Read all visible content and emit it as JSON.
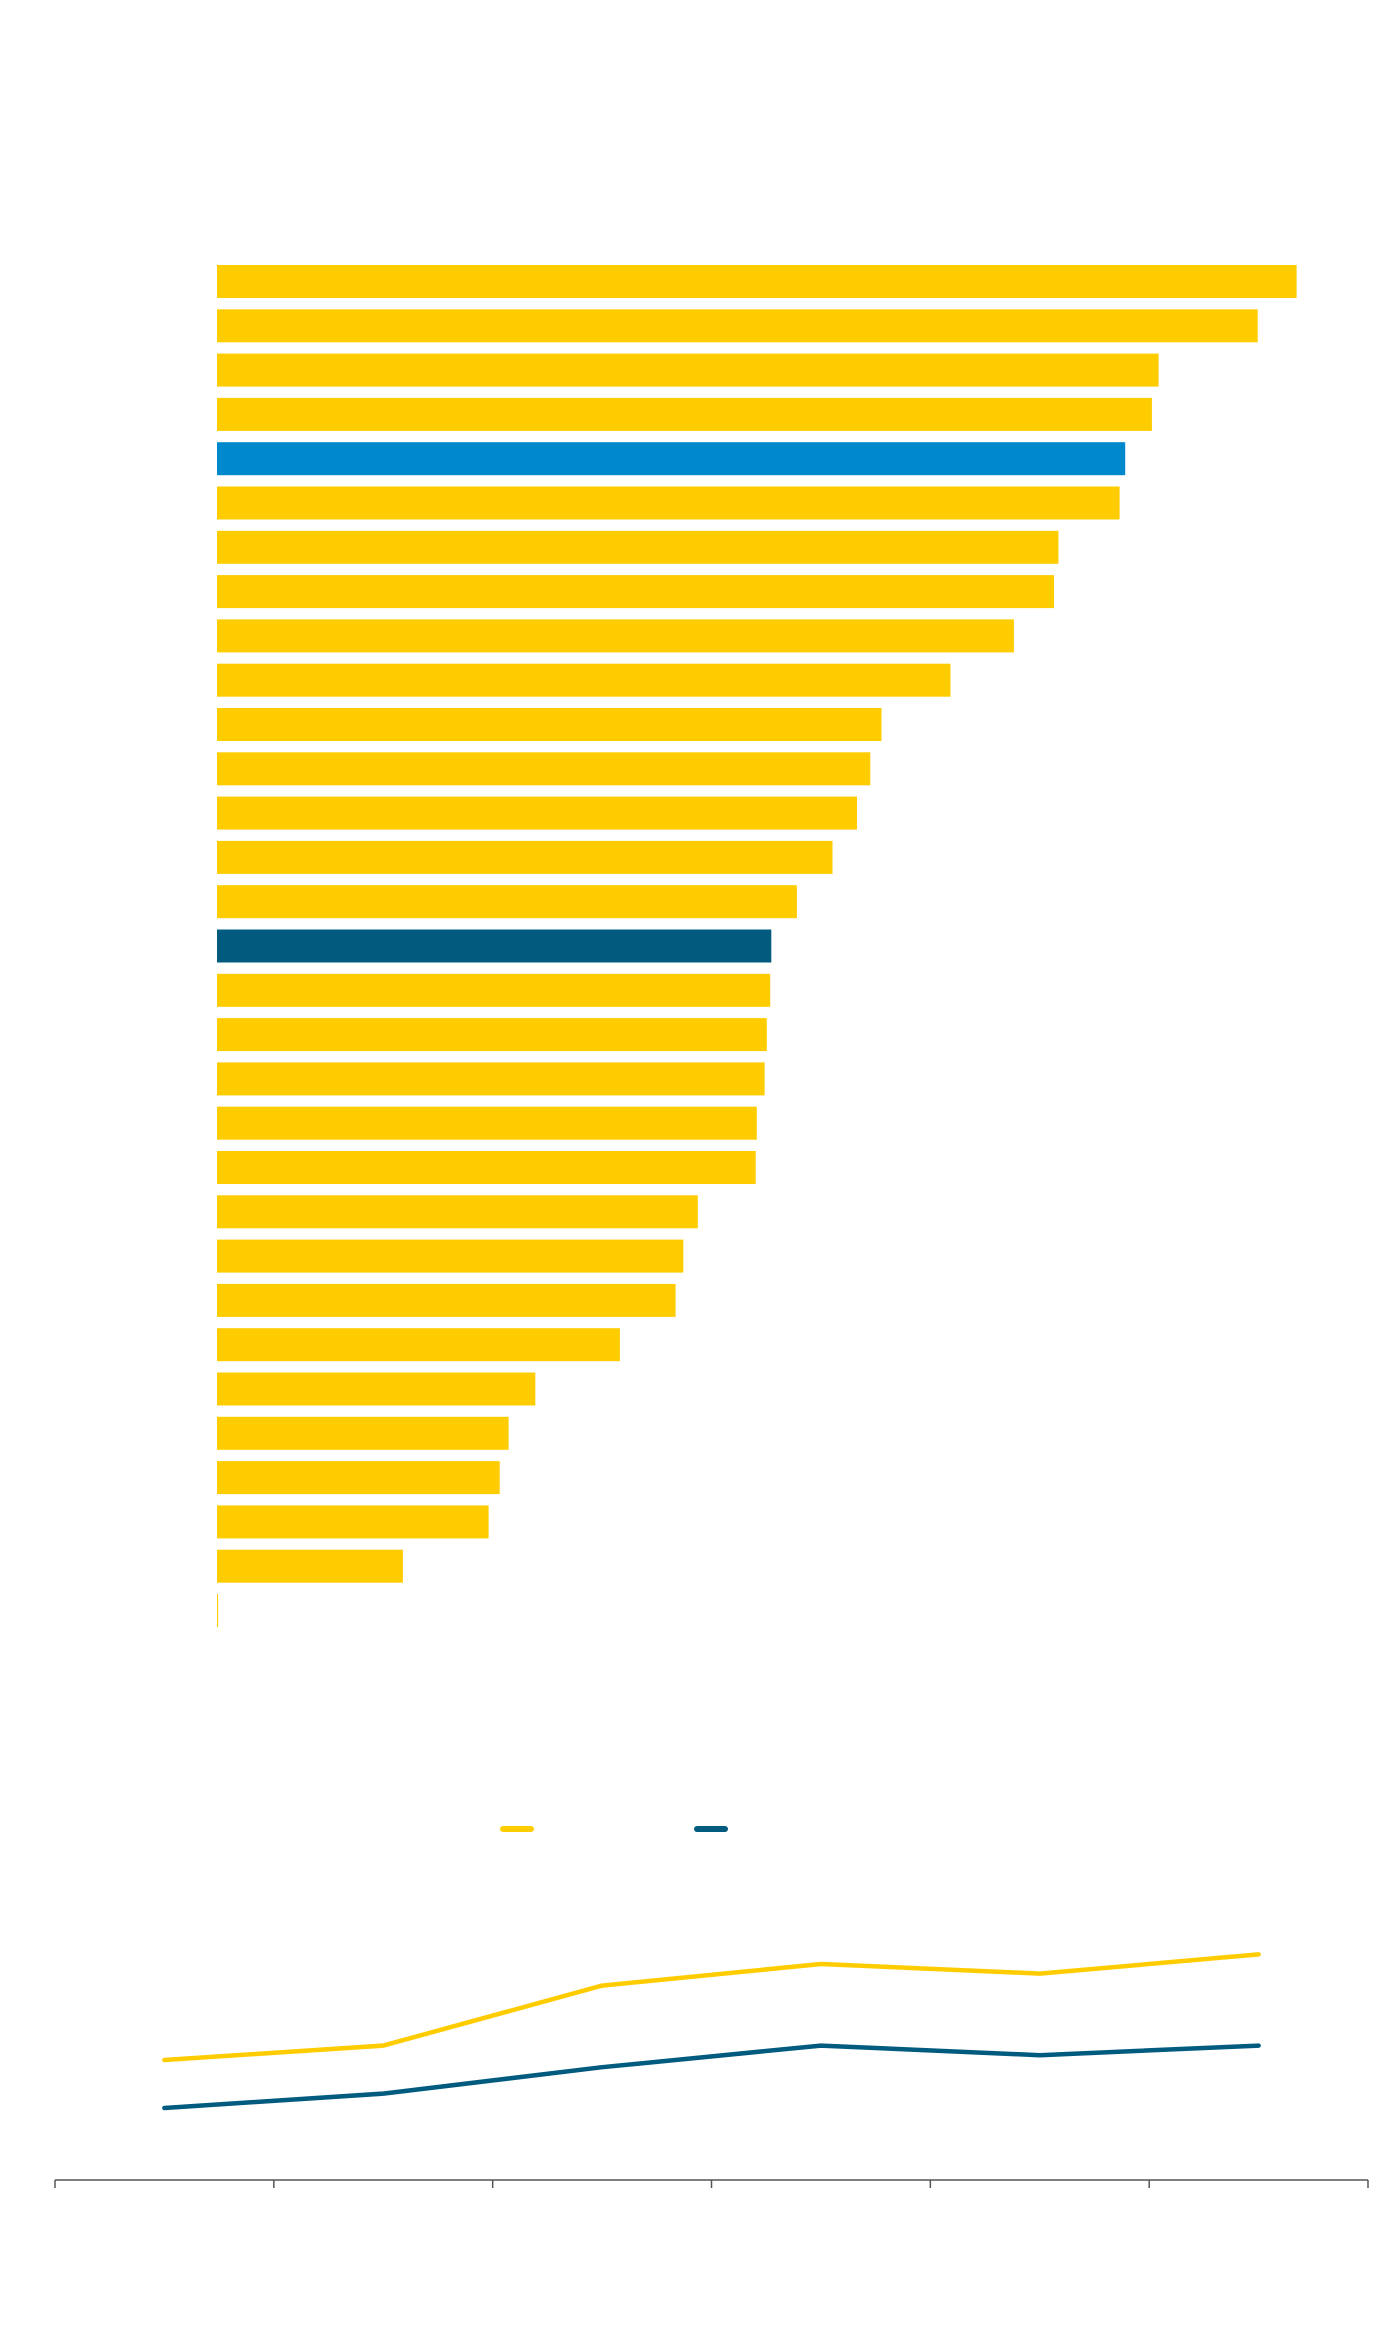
{
  "colors": {
    "bar_default": "#FFCC00",
    "bar_highlight_1": "#0088CC",
    "bar_highlight_2": "#005B7F",
    "line_series_1": "#FFCC00",
    "line_series_2": "#005B7F",
    "axis": "#555555"
  },
  "legend": [
    {
      "label": "",
      "color": "#FFCC00"
    },
    {
      "label": "",
      "color": "#005B7F"
    }
  ],
  "chart_data": [
    {
      "type": "bar",
      "orientation": "horizontal",
      "title": "",
      "xlabel": "",
      "ylabel": "",
      "xlim": [
        0,
        100
      ],
      "grid": false,
      "values": [
        97.0,
        93.5,
        84.6,
        84.0,
        81.6,
        81.1,
        75.6,
        75.2,
        71.6,
        65.9,
        59.7,
        58.7,
        57.5,
        55.3,
        52.1,
        49.8,
        49.7,
        49.4,
        49.2,
        48.5,
        48.4,
        43.2,
        41.9,
        41.2,
        36.2,
        28.6,
        26.2,
        25.4,
        24.4,
        16.7,
        0.1
      ],
      "highlight": [
        {
          "index": 4,
          "color": "#0088CC"
        },
        {
          "index": 15,
          "color": "#005B7F"
        }
      ]
    },
    {
      "type": "line",
      "title": "",
      "xlabel": "",
      "ylabel": "",
      "x": [
        1,
        2,
        3,
        4,
        5,
        6
      ],
      "xlim": [
        0.5,
        6.5
      ],
      "ylim": [
        0,
        100
      ],
      "grid": false,
      "series": [
        {
          "color": "#FFCC00",
          "values": [
            50,
            56,
            81,
            90,
            86,
            94
          ]
        },
        {
          "color": "#005B7F",
          "values": [
            30,
            36,
            47,
            56,
            52,
            56
          ]
        }
      ]
    }
  ]
}
